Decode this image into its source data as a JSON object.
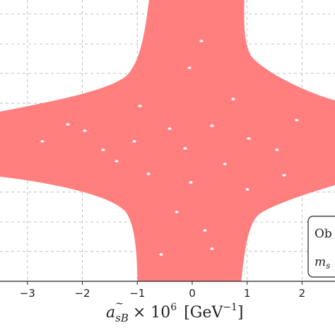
{
  "chart_data": {
    "type": "scatter",
    "xlabel_parts": {
      "symbol": "a",
      "subscript": "s",
      "subscript2": "B",
      "accent": "~",
      "times": "× 10",
      "exponent": "6",
      "unit_open": "[GeV",
      "unit_exponent": "−1",
      "unit_close": "]"
    },
    "x_ticks": [
      -3,
      -2,
      -1,
      0,
      1,
      2
    ],
    "x_tick_labels": [
      "−3",
      "−2",
      "−1",
      "0",
      "1",
      "2"
    ],
    "xlim": [
      -3.5,
      2.6
    ],
    "ylim": [
      0,
      1
    ],
    "y_gridlines": [
      0.106,
      0.211,
      0.317,
      0.422,
      0.528,
      0.633,
      0.739,
      0.844,
      0.95
    ],
    "grid": true,
    "series": [
      {
        "color": "#ff7f7f",
        "region": "four-armed cross-shaped allowed region, centred near x = 0"
      }
    ],
    "legend": {
      "placement": "bottom-right",
      "lines": [
        "Ob",
        "m_s"
      ]
    }
  }
}
